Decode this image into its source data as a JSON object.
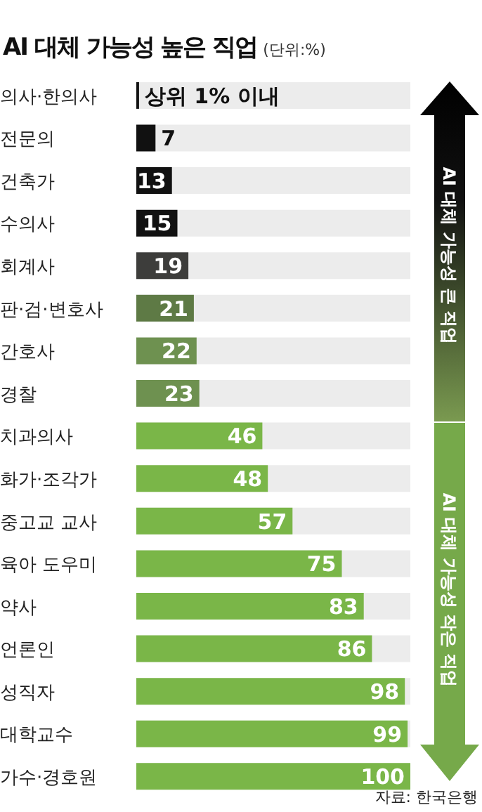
{
  "chart_data": {
    "type": "bar",
    "orientation": "horizontal",
    "title": "AI 대체 가능성 높은 직업",
    "subtitle": "(단위:%)",
    "categories": [
      "의사·한의사",
      "전문의",
      "건축가",
      "수의사",
      "회계사",
      "판·검·변호사",
      "간호사",
      "경찰",
      "치과의사",
      "화가·조각가",
      "중고교 교사",
      "육아 도우미",
      "약사",
      "언론인",
      "성직자",
      "대학교수",
      "가수·경호원"
    ],
    "values": [
      1,
      7,
      13,
      15,
      19,
      21,
      22,
      23,
      46,
      48,
      57,
      75,
      83,
      86,
      98,
      99,
      100
    ],
    "value_labels": [
      "상위 1% 이내",
      "7",
      "13",
      "15",
      "19",
      "21",
      "22",
      "23",
      "46",
      "48",
      "57",
      "75",
      "83",
      "86",
      "98",
      "99",
      "100"
    ],
    "colors": [
      "#111111",
      "#111111",
      "#111111",
      "#111111",
      "#3d3d3b",
      "#5e7a45",
      "#6e9150",
      "#6e9150",
      "#7ab648",
      "#7ab648",
      "#7ab648",
      "#7ab648",
      "#7ab648",
      "#7ab648",
      "#7ab648",
      "#7ab648",
      "#7ab648"
    ],
    "annotations": [
      "AI 대체 가능성 큰 직업",
      "AI 대체 가능성 작은 직업",
      "자료: 한국은행"
    ]
  }
}
